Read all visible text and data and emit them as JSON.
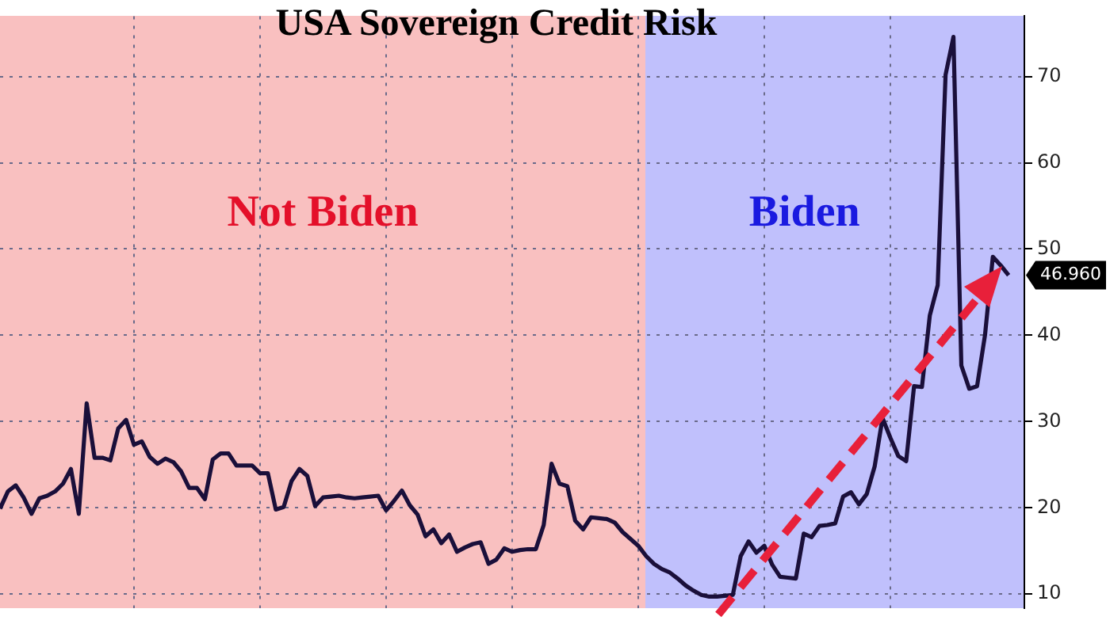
{
  "chart_data": {
    "type": "line",
    "title": "USA Sovereign Credit Risk",
    "categories": [
      null,
      null,
      null,
      null,
      null,
      null,
      null,
      null,
      null,
      null,
      null,
      null,
      null,
      null,
      null,
      null,
      null,
      null,
      null,
      null,
      null,
      null,
      null,
      null,
      null,
      null,
      null,
      null,
      null,
      null,
      null,
      null,
      null,
      null,
      null,
      null,
      null,
      null,
      null,
      null,
      null,
      null,
      null,
      null,
      null,
      null,
      null,
      null,
      null,
      null,
      null,
      null,
      null,
      null,
      null,
      null,
      null,
      null,
      null,
      null,
      null,
      null,
      null,
      null,
      null,
      null,
      null,
      null,
      null,
      null,
      null,
      null,
      null,
      null,
      null,
      null,
      null,
      null,
      null,
      null,
      null,
      null,
      null,
      null,
      null,
      null,
      null,
      null,
      null,
      null,
      null,
      null,
      null,
      null,
      null,
      null,
      null,
      null,
      null,
      null,
      null,
      null,
      null,
      null,
      null,
      null,
      null,
      null,
      null,
      null,
      null,
      null,
      null,
      null,
      null,
      null,
      null,
      null,
      null,
      null,
      null,
      null,
      null,
      null,
      null,
      null,
      null,
      null,
      null,
      null,
      null
    ],
    "ylim": [
      8.4,
      77
    ],
    "yticks": [
      10,
      20,
      30,
      40,
      50,
      60,
      70
    ],
    "tick_labels": "y",
    "grid": true,
    "legend": false,
    "marker": "none",
    "line_style": "solid",
    "annotations": [
      "Not Biden",
      "Biden",
      "46.960"
    ],
    "series": [
      {
        "color": "#1a0f3a",
        "values": [
          19.9,
          21.9,
          22.6,
          21.2,
          19.3,
          21.1,
          21.4,
          21.9,
          22.8,
          24.5,
          19.3,
          32.1,
          25.8,
          25.8,
          25.5,
          29.2,
          30.2,
          27.3,
          27.7,
          25.9,
          25.1,
          25.7,
          25.3,
          24.2,
          22.3,
          22.3,
          21.0,
          25.6,
          26.3,
          26.3,
          24.9,
          24.9,
          24.9,
          24.0,
          24.0,
          19.8,
          20.1,
          23.1,
          24.5,
          23.7,
          20.2,
          21.2,
          21.3,
          21.4,
          21.2,
          21.1,
          21.2,
          21.3,
          21.4,
          19.7,
          20.8,
          22.0,
          20.3,
          19.2,
          16.7,
          17.5,
          15.9,
          16.9,
          14.9,
          15.4,
          15.8,
          16.0,
          13.5,
          14.0,
          15.3,
          14.9,
          15.1,
          15.2,
          15.2,
          18.0,
          25.1,
          22.8,
          22.5,
          18.5,
          17.5,
          18.9,
          18.8,
          18.7,
          18.3,
          17.2,
          16.4,
          15.6,
          14.4,
          13.5,
          12.9,
          12.5,
          11.8,
          11.0,
          10.4,
          9.9,
          9.7,
          9.7,
          9.8,
          9.9,
          14.4,
          16.1,
          14.8,
          15.6,
          13.4,
          12.0,
          11.9,
          11.8,
          17.0,
          16.6,
          17.9,
          18.0,
          18.2,
          21.3,
          21.8,
          20.4,
          21.6,
          24.8,
          30.4,
          28.1,
          26.0,
          25.4,
          34.1,
          34.0,
          42.3,
          45.8,
          70.2,
          74.6,
          36.5,
          33.8,
          34.1,
          40.0,
          49.1,
          48.1,
          46.96,
          null,
          null
        ]
      }
    ]
  }
}
